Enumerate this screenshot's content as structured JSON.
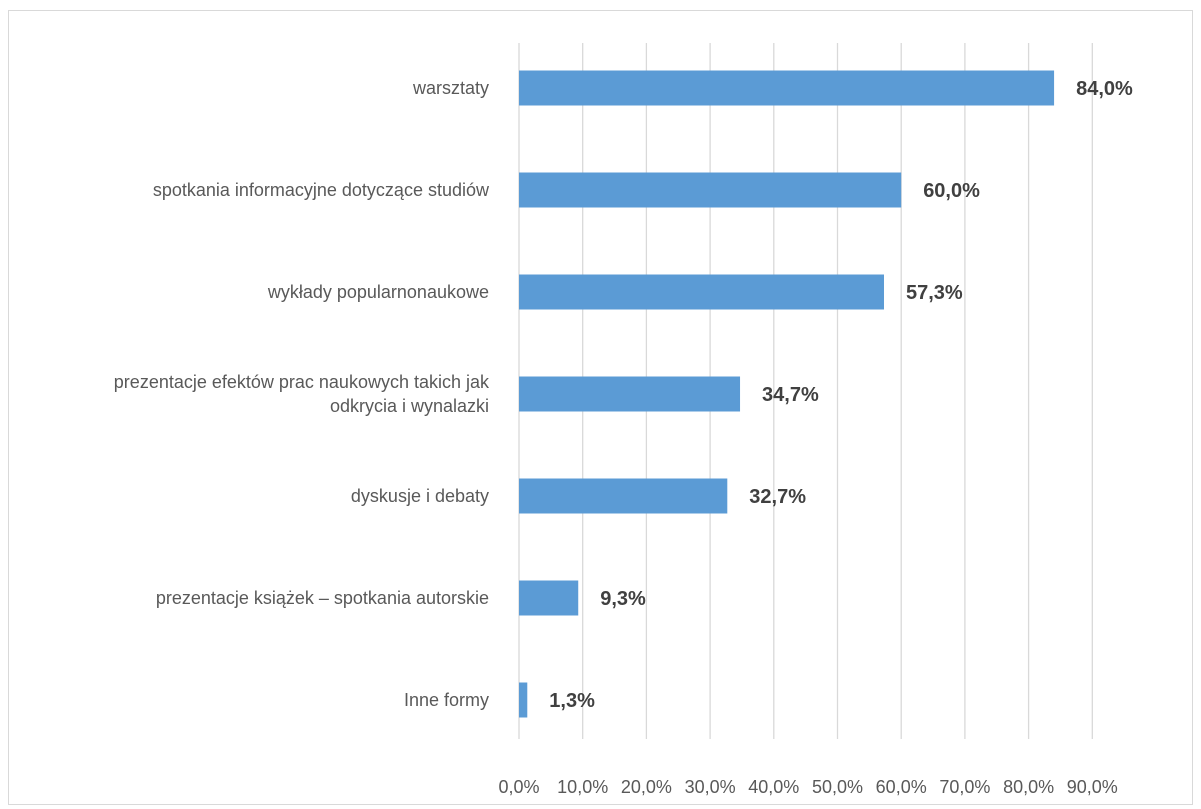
{
  "chart_data": {
    "type": "bar",
    "orientation": "horizontal",
    "categories": [
      "warsztaty",
      "spotkania informacyjne dotyczące studiów",
      "wykłady popularnonaukowe",
      "prezentacje efektów prac naukowych takich jak odkrycia i wynalazki",
      "dyskusje i debaty",
      "prezentacje książek – spotkania autorskie",
      "Inne formy"
    ],
    "category_lines": [
      [
        "warsztaty"
      ],
      [
        "spotkania informacyjne dotyczące studiów"
      ],
      [
        "wykłady popularnonaukowe"
      ],
      [
        "prezentacje efektów prac naukowych takich jak",
        "odkrycia i wynalazki"
      ],
      [
        "dyskusje i debaty"
      ],
      [
        "prezentacje książek – spotkania autorskie"
      ],
      [
        "Inne formy"
      ]
    ],
    "values": [
      84.0,
      60.0,
      57.3,
      34.7,
      32.7,
      9.3,
      1.3
    ],
    "value_labels": [
      "84,0%",
      "60,0%",
      "57,3%",
      "34,7%",
      "32,7%",
      "9,3%",
      "1,3%"
    ],
    "x_ticks": [
      0,
      10,
      20,
      30,
      40,
      50,
      60,
      70,
      80,
      90
    ],
    "x_tick_labels": [
      "0,0%",
      "10,0%",
      "20,0%",
      "30,0%",
      "40,0%",
      "50,0%",
      "60,0%",
      "70,0%",
      "80,0%",
      "90,0%"
    ],
    "xlim": [
      0,
      90
    ],
    "title": "",
    "xlabel": "",
    "ylabel": "",
    "grid": "vertical",
    "legend": "none",
    "colors": {
      "bar": "#5b9bd5",
      "grid": "#d9d9d9",
      "axis_text": "#595959",
      "data_label": "#404040"
    }
  }
}
